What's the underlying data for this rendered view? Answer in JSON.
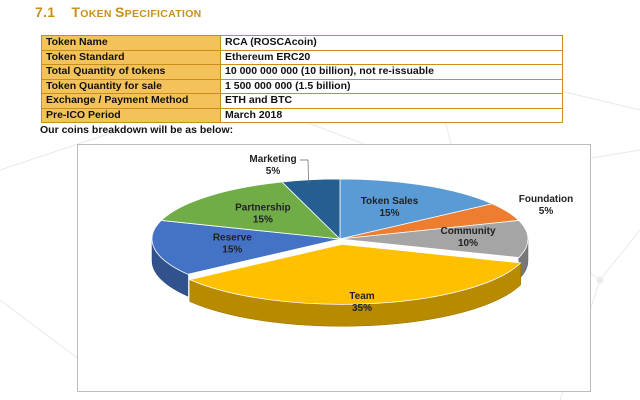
{
  "section": {
    "number": "7.1",
    "title_parts": [
      {
        "text": "T",
        "size": "big"
      },
      {
        "text": "OKEN ",
        "size": "small"
      },
      {
        "text": "S",
        "size": "big"
      },
      {
        "text": "PECIFICATION",
        "size": "small"
      }
    ]
  },
  "spec_table": [
    {
      "key": "Token Name",
      "value": "RCA (ROSCAcoin)"
    },
    {
      "key": "Token Standard",
      "value": "Ethereum ERC20"
    },
    {
      "key": "Total Quantity of tokens",
      "value": "10 000 000 000 (10 billion), not re-issuable"
    },
    {
      "key": "Token Quantity for sale",
      "value": "1 500 000 000 (1.5 billion)"
    },
    {
      "key": "Exchange / Payment Method",
      "value": "ETH and BTC"
    },
    {
      "key": "Pre-ICO Period",
      "value": "March 2018"
    }
  ],
  "intro": "Our coins breakdown will be as below:",
  "chart_data": {
    "type": "pie",
    "style": "3d",
    "slices": [
      {
        "name": "Token Sales",
        "value": 15,
        "label": "15%",
        "color": "#5b9bd5"
      },
      {
        "name": "Foundation",
        "value": 5,
        "label": "5%",
        "color": "#ed7d31"
      },
      {
        "name": "Community",
        "value": 10,
        "label": "10%",
        "color": "#a5a5a5"
      },
      {
        "name": "Team",
        "value": 35,
        "label": "35%",
        "color": "#ffc000"
      },
      {
        "name": "Reserve",
        "value": 15,
        "label": "15%",
        "color": "#4472c4"
      },
      {
        "name": "Partnership",
        "value": 15,
        "label": "15%",
        "color": "#70ad47"
      },
      {
        "name": "Marketing",
        "value": 5,
        "label": "5%",
        "color": "#255e91"
      }
    ]
  }
}
